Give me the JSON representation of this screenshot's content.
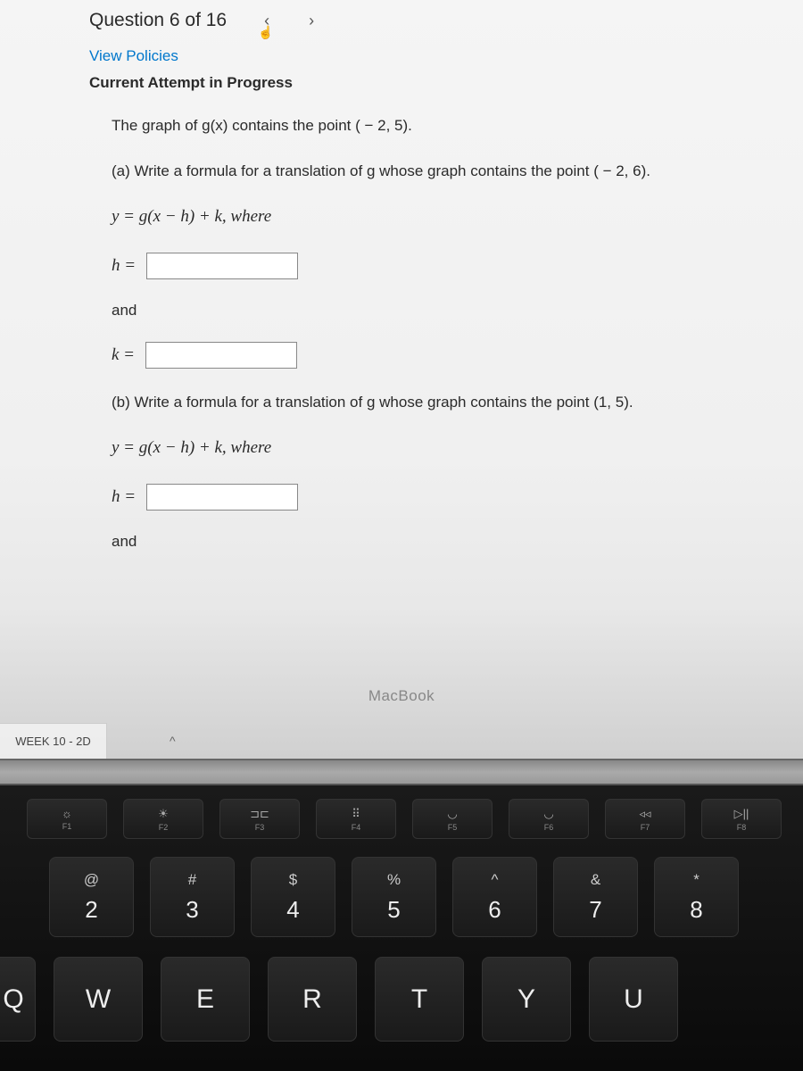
{
  "header": {
    "question_title": "Question 6 of 16",
    "view_policies": "View Policies",
    "attempt_status": "Current Attempt in Progress"
  },
  "question": {
    "intro": "The graph of g(x) contains the point ( − 2, 5).",
    "part_a": "(a) Write a formula for a translation of g whose graph contains the point ( − 2, 6).",
    "formula_a": "y = g(x − h) + k, where",
    "h_label": "h =",
    "and_text": "and",
    "k_label": "k =",
    "part_b": "(b) Write a formula for a translation of g whose graph contains the point (1, 5).",
    "formula_b": "y = g(x − h) + k, where",
    "h_label_b": "h =",
    "and_text_b": "and"
  },
  "tab": {
    "label": "WEEK 10 - 2D"
  },
  "device": {
    "macbook": "MacBook"
  },
  "keyboard": {
    "fn_keys": [
      {
        "icon": "☼",
        "label": "F1"
      },
      {
        "icon": "☀",
        "label": "F2"
      },
      {
        "icon": "⊐⊏",
        "label": "F3"
      },
      {
        "icon": "⠿",
        "label": "F4"
      },
      {
        "icon": "◡",
        "label": "F5"
      },
      {
        "icon": "◡",
        "label": "F6"
      },
      {
        "icon": "◃◃",
        "label": "F7"
      },
      {
        "icon": "▷||",
        "label": "F8"
      }
    ],
    "num_keys": [
      {
        "symbol": "@",
        "number": "2"
      },
      {
        "symbol": "#",
        "number": "3"
      },
      {
        "symbol": "$",
        "number": "4"
      },
      {
        "symbol": "%",
        "number": "5"
      },
      {
        "symbol": "^",
        "number": "6"
      },
      {
        "symbol": "&",
        "number": "7"
      },
      {
        "symbol": "*",
        "number": "8"
      }
    ],
    "letter_keys": [
      "Q",
      "W",
      "E",
      "R",
      "T",
      "Y",
      "U"
    ]
  },
  "colors": {
    "link_color": "#0077cc",
    "screen_bg": "#f5f5f5",
    "keyboard_bg": "#1a1a1a",
    "key_bg": "#2a2a2a",
    "key_text": "#eee"
  }
}
